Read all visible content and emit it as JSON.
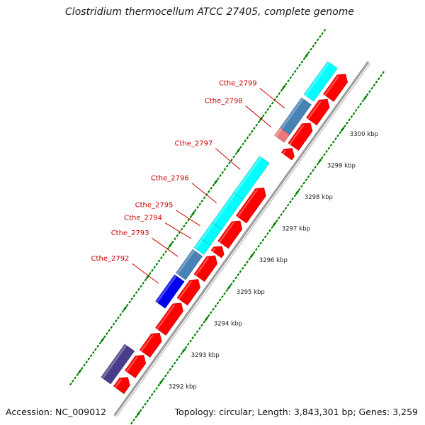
{
  "title": "Clostridium thermocellum ATCC 27405, complete genome",
  "footer": {
    "accession": "Accession: NC_009012",
    "topology": "Topology: circular; Length: 3,843,301 bp; Genes: 3,259"
  },
  "colors": {
    "cds_forward_red": "#ff0000",
    "steelblue": "#4682b4",
    "cyan": "#00ffff",
    "blue": "#0000ee",
    "slateblue": "#483d8b",
    "pink": "#ee7777",
    "backbone": "#9e9e9e",
    "tick": "#008000",
    "label": "#cc0000"
  },
  "chart_data": {
    "type": "genome-map",
    "axis_unit": "kbp",
    "kbp_ticks": [
      {
        "kbp": 3292,
        "label": "3292 kbp"
      },
      {
        "kbp": 3293,
        "label": "3293 kbp"
      },
      {
        "kbp": 3294,
        "label": "3294 kbp"
      },
      {
        "kbp": 3295,
        "label": "3295 kbp"
      },
      {
        "kbp": 3296,
        "label": "3296 kbp"
      },
      {
        "kbp": 3297,
        "label": "3297 kbp"
      },
      {
        "kbp": 3298,
        "label": "3298 kbp"
      },
      {
        "kbp": 3299,
        "label": "3299 kbp"
      },
      {
        "kbp": 3300,
        "label": "3300 kbp"
      }
    ],
    "view_range_kbp": [
      3291.2,
      3301.2
    ],
    "genes": [
      {
        "name": "Cthe_2792",
        "start": 3293.6,
        "end": 3294.45,
        "color": "blue"
      },
      {
        "name": "Cthe_2793",
        "start": 3294.5,
        "end": 3295.25,
        "color": "steelblue"
      },
      {
        "name": "Cthe_2794",
        "start": 3295.3,
        "end": 3295.6,
        "color": "cyan"
      },
      {
        "name": "Cthe_2795",
        "start": 3295.6,
        "end": 3296.1,
        "color": "cyan"
      },
      {
        "name": "Cthe_2796",
        "start": 3296.1,
        "end": 3297.05,
        "color": "cyan"
      },
      {
        "name": "Cthe_2797",
        "start": 3297.05,
        "end": 3298.2,
        "color": "cyan"
      },
      {
        "name": "Cthe_2798",
        "start": 3298.85,
        "end": 3299.1,
        "color": "pink"
      },
      {
        "name": "Cthe_2799",
        "start": 3299.1,
        "end": 3300.05,
        "color": "steelblue"
      },
      {
        "name": "",
        "start": 3291.2,
        "end": 3292.25,
        "color": "slateblue"
      },
      {
        "name": "",
        "start": 3300.15,
        "end": 3301.2,
        "color": "cyan"
      }
    ],
    "cds_forward": [
      {
        "start": 3291.2,
        "end": 3291.6
      },
      {
        "start": 3291.7,
        "end": 3292.3
      },
      {
        "start": 3292.35,
        "end": 3293.0
      },
      {
        "start": 3293.05,
        "end": 3293.95
      },
      {
        "start": 3294.0,
        "end": 3294.7
      },
      {
        "start": 3294.75,
        "end": 3295.45
      },
      {
        "start": 3295.5,
        "end": 3295.75
      },
      {
        "start": 3295.8,
        "end": 3296.55
      },
      {
        "start": 3296.6,
        "end": 3297.6
      },
      {
        "start": 3298.6,
        "end": 3298.85
      },
      {
        "start": 3298.9,
        "end": 3299.65
      },
      {
        "start": 3299.7,
        "end": 3300.4
      },
      {
        "start": 3300.45,
        "end": 3301.2
      }
    ]
  }
}
